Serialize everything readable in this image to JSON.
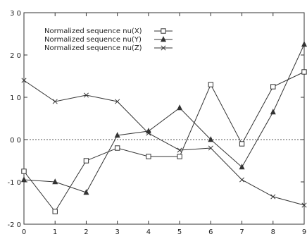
{
  "chart_data": {
    "type": "line",
    "title": "",
    "xlabel": "",
    "ylabel": "",
    "x": [
      0,
      1,
      2,
      3,
      4,
      5,
      6,
      7,
      8,
      9
    ],
    "xlim": [
      0,
      9
    ],
    "ylim": [
      -2.0,
      3.0
    ],
    "xticks": [
      "0",
      "1",
      "2",
      "3",
      "4",
      "5",
      "6",
      "7",
      "8",
      "9"
    ],
    "yticks": [
      {
        "value": 3.0,
        "label": "3 0"
      },
      {
        "value": 2.0,
        "label": "2 0"
      },
      {
        "value": 1.0,
        "label": "1 0"
      },
      {
        "value": 0.0,
        "label": "0 0"
      },
      {
        "value": -1.0,
        "label": "-1 0"
      },
      {
        "value": -2.0,
        "label": "-2 0"
      }
    ],
    "reference_line_y": 0,
    "legend_position": "top-left",
    "grid": false,
    "series": [
      {
        "name": "Normalized sequence nu(X)",
        "marker": "square",
        "values": [
          -0.75,
          -1.7,
          -0.5,
          -0.2,
          -0.4,
          -0.4,
          1.3,
          -0.1,
          1.25,
          1.6
        ]
      },
      {
        "name": "Normalized sequence nu(Y)",
        "marker": "triangle",
        "values": [
          -0.95,
          -1.0,
          -1.25,
          0.1,
          0.2,
          0.75,
          0.0,
          -0.65,
          0.65,
          2.25
        ]
      },
      {
        "name": "Normalized sequence nu(Z)",
        "marker": "cross",
        "values": [
          1.4,
          0.9,
          1.05,
          0.9,
          0.15,
          -0.25,
          -0.2,
          -0.95,
          -1.35,
          -1.55
        ]
      }
    ]
  }
}
